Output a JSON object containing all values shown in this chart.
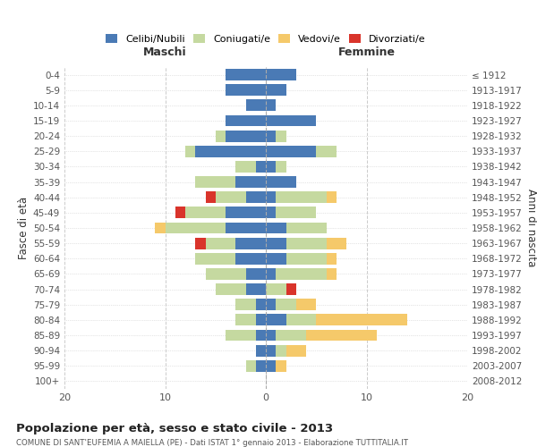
{
  "age_groups": [
    "0-4",
    "5-9",
    "10-14",
    "15-19",
    "20-24",
    "25-29",
    "30-34",
    "35-39",
    "40-44",
    "45-49",
    "50-54",
    "55-59",
    "60-64",
    "65-69",
    "70-74",
    "75-79",
    "80-84",
    "85-89",
    "90-94",
    "95-99",
    "100+"
  ],
  "birth_years": [
    "2008-2012",
    "2003-2007",
    "1998-2002",
    "1993-1997",
    "1988-1992",
    "1983-1987",
    "1978-1982",
    "1973-1977",
    "1968-1972",
    "1963-1967",
    "1958-1962",
    "1953-1957",
    "1948-1952",
    "1943-1947",
    "1938-1942",
    "1933-1937",
    "1928-1932",
    "1923-1927",
    "1918-1922",
    "1913-1917",
    "≤ 1912"
  ],
  "colors": {
    "celibi": "#4a7ab5",
    "coniugati": "#c5d9a0",
    "vedovi": "#f5c96a",
    "divorziati": "#d9342b"
  },
  "maschi": {
    "celibi": [
      4,
      4,
      2,
      4,
      4,
      7,
      1,
      3,
      2,
      4,
      4,
      3,
      3,
      2,
      2,
      1,
      1,
      1,
      1,
      1,
      0
    ],
    "coniugati": [
      0,
      0,
      0,
      0,
      1,
      1,
      2,
      4,
      3,
      4,
      6,
      3,
      4,
      4,
      3,
      2,
      2,
      3,
      0,
      1,
      0
    ],
    "vedovi": [
      0,
      0,
      0,
      0,
      0,
      0,
      0,
      0,
      0,
      0,
      1,
      0,
      0,
      0,
      0,
      0,
      0,
      0,
      0,
      0,
      0
    ],
    "divorziati": [
      0,
      0,
      0,
      0,
      0,
      0,
      0,
      0,
      1,
      1,
      0,
      1,
      0,
      0,
      0,
      0,
      0,
      0,
      0,
      0,
      0
    ]
  },
  "femmine": {
    "celibi": [
      3,
      2,
      1,
      5,
      1,
      5,
      1,
      3,
      1,
      1,
      2,
      2,
      2,
      1,
      0,
      1,
      2,
      1,
      1,
      1,
      0
    ],
    "coniugati": [
      0,
      0,
      0,
      0,
      1,
      2,
      1,
      0,
      5,
      4,
      4,
      4,
      4,
      5,
      2,
      2,
      3,
      3,
      1,
      0,
      0
    ],
    "vedovi": [
      0,
      0,
      0,
      0,
      0,
      0,
      0,
      0,
      1,
      0,
      0,
      2,
      1,
      1,
      0,
      2,
      9,
      7,
      2,
      1,
      0
    ],
    "divorziati": [
      0,
      0,
      0,
      0,
      0,
      0,
      0,
      0,
      0,
      0,
      0,
      0,
      0,
      0,
      1,
      0,
      0,
      0,
      0,
      0,
      0
    ]
  },
  "xlim": 20,
  "title": "Popolazione per età, sesso e stato civile - 2013",
  "subtitle": "COMUNE DI SANT'EUFEMIA A MAIELLA (PE) - Dati ISTAT 1° gennaio 2013 - Elaborazione TUTTITALIA.IT",
  "ylabel_left": "Fasce di età",
  "ylabel_right": "Anni di nascita",
  "legend_labels": [
    "Celibi/Nubili",
    "Coniugati/e",
    "Vedovi/e",
    "Divorziati/e"
  ],
  "maschi_label": "Maschi",
  "femmine_label": "Femmine"
}
